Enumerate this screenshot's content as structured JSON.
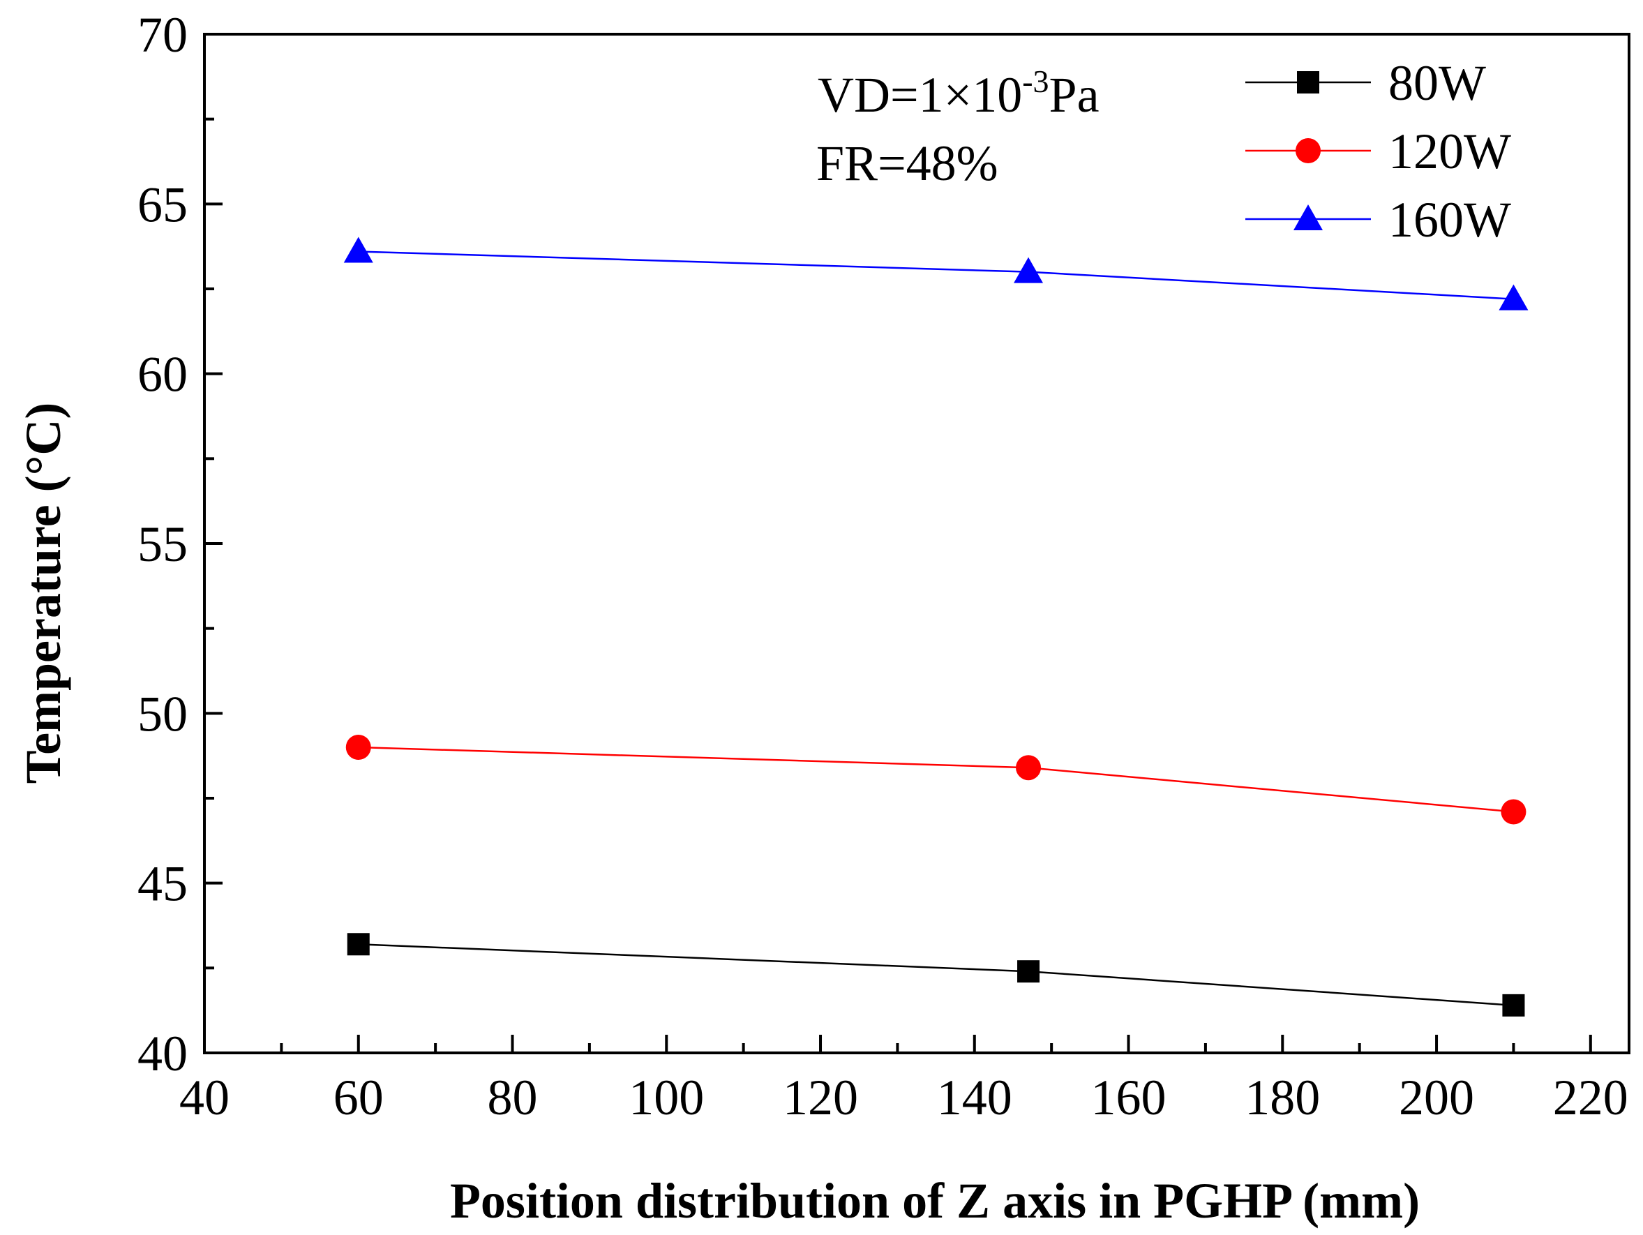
{
  "chart_data": {
    "type": "line",
    "title": "",
    "xlabel": "Position distribution of Z axis in PGHP (mm)",
    "ylabel": "Temperature (°C)",
    "xlim": [
      40,
      225
    ],
    "ylim": [
      40,
      70
    ],
    "xticks": [
      40,
      60,
      80,
      100,
      120,
      140,
      160,
      180,
      200,
      220
    ],
    "yticks": [
      40,
      45,
      50,
      55,
      60,
      65,
      70
    ],
    "grid": false,
    "legend_position": "top-right",
    "annotations": [
      {
        "text": "VD=1×10",
        "superscript": "-3",
        "suffix": "Pa"
      },
      {
        "text": "FR=48%"
      }
    ],
    "series": [
      {
        "name": "80W",
        "marker": "square",
        "color": "#000000",
        "x": [
          60,
          147,
          210
        ],
        "y": [
          43.2,
          42.4,
          41.4
        ]
      },
      {
        "name": "120W",
        "marker": "circle",
        "color": "#ff0000",
        "x": [
          60,
          147,
          210
        ],
        "y": [
          49.0,
          48.4,
          47.1
        ]
      },
      {
        "name": "160W",
        "marker": "triangle",
        "color": "#0000ff",
        "x": [
          60,
          147,
          210
        ],
        "y": [
          63.6,
          63.0,
          62.2
        ]
      }
    ]
  }
}
